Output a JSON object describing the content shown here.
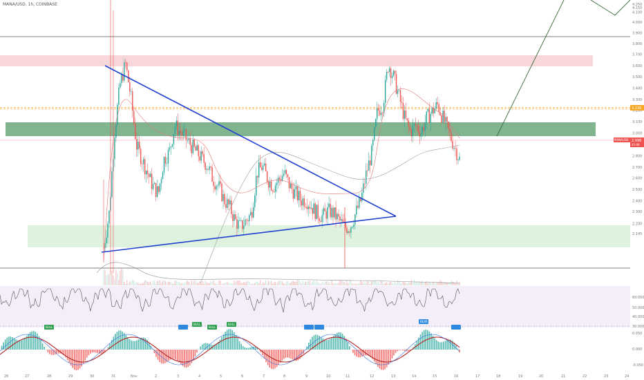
{
  "header": {
    "symbol_line": "MANA/USD, 1h, COINBASE"
  },
  "price_tags": {
    "orange_level": "3.236",
    "current_symbol": "MANAUSD",
    "current_price": "2.998",
    "countdown": "45:09"
  },
  "colors": {
    "up_candle": "#26a69a",
    "down_candle": "#ef5350",
    "trendline": "#1e3fd0",
    "red_zone": "#f6d3d6",
    "green_zone": "#6aa87b",
    "light_green_zone": "#dcefdc",
    "orange_line": "#f5a623",
    "rsi_bg": "#f3eef9",
    "badge_green": "#2e9e4f",
    "badge_blue": "#2f88e0"
  },
  "chart_data": {
    "type": "candlestick",
    "price_axis_labels": [
      "4.250",
      "4.150",
      "4.100",
      "4.000",
      "3.900",
      "3.800",
      "3.700",
      "3.600",
      "3.500",
      "3.400",
      "3.300",
      "3.200",
      "3.100",
      "3.000",
      "2.900",
      "2.800",
      "2.700",
      "2.600",
      "2.500",
      "2.400",
      "2.300",
      "2.200",
      "2.145"
    ],
    "date_labels": [
      "26",
      "27",
      "28",
      "29",
      "30",
      "31",
      "Nov",
      "2",
      "3",
      "4",
      "5",
      "6",
      "7",
      "8",
      "9",
      "10",
      "11",
      "12",
      "13",
      "14",
      "15",
      "16",
      "17",
      "18",
      "19",
      "20",
      "21",
      "22",
      "23",
      "24"
    ],
    "rsi_axis_labels": [
      "60.000",
      "50.000",
      "40.000",
      "30.000"
    ],
    "macd_axis_labels": [
      "0.050",
      "0.000",
      "-0.050"
    ],
    "price_series_close": [
      2.35,
      2.6,
      3.2,
      3.55,
      3.7,
      3.45,
      3.1,
      3.0,
      2.9,
      2.8,
      2.75,
      3.0,
      3.05,
      3.25,
      3.2,
      3.15,
      3.1,
      3.05,
      3.0,
      2.95,
      2.85,
      2.8,
      2.7,
      2.65,
      2.55,
      2.5,
      2.55,
      2.6,
      2.9,
      2.95,
      2.85,
      2.8,
      2.85,
      2.9,
      2.8,
      2.75,
      2.7,
      2.7,
      2.65,
      2.6,
      2.58,
      2.62,
      2.6,
      2.55,
      2.5,
      2.5,
      2.6,
      2.7,
      2.9,
      3.05,
      3.35,
      3.4,
      3.7,
      3.6,
      3.45,
      3.3,
      3.2,
      3.25,
      3.2,
      3.3,
      3.35,
      3.4,
      3.3,
      3.2,
      3.1,
      3.0
    ],
    "annotations": {
      "zones": [
        {
          "type": "resistance",
          "from": 3.6,
          "to": 3.7
        },
        {
          "type": "support",
          "from": 3.02,
          "to": 3.12
        },
        {
          "type": "support",
          "from": 2.3,
          "to": 2.43
        }
      ],
      "horizontal_lines": [
        3.9,
        3.24,
        2.2
      ],
      "triangle": {
        "upper_start": 3.6,
        "lower_start": 2.27,
        "apex": 2.49
      }
    },
    "badges": [
      "BULL",
      "BULL",
      "BULL",
      "BULL",
      "BULL",
      "BEAR"
    ]
  }
}
